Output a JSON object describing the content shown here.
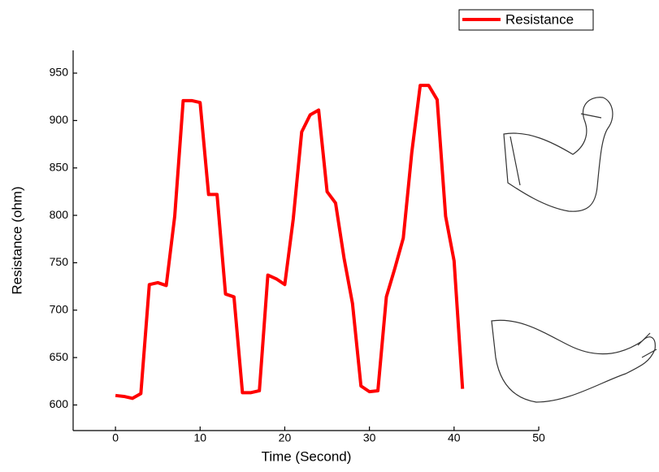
{
  "chart_data": {
    "type": "line",
    "x_label": "Time (Second)",
    "y_label": "Resistance (ohm)",
    "x": [
      0,
      1,
      2,
      3,
      4,
      5,
      6,
      7,
      8,
      9,
      10,
      11,
      12,
      13,
      14,
      15,
      16,
      17,
      18,
      19,
      20,
      21,
      22,
      23,
      24,
      25,
      26,
      27,
      28,
      29,
      30,
      31,
      32,
      33,
      34,
      35,
      36,
      37,
      38,
      39,
      40,
      41
    ],
    "series": [
      {
        "name": "Resistance",
        "color": "#ff0000",
        "values": [
          610,
          609,
          607,
          612,
          727,
          729,
          726,
          799,
          921,
          921,
          919,
          822,
          822,
          717,
          714,
          613,
          613,
          615,
          737,
          733,
          727,
          796,
          888,
          906,
          911,
          825,
          813,
          755,
          707,
          620,
          614,
          615,
          714,
          744,
          776,
          866,
          937,
          937,
          922,
          799,
          752,
          617
        ]
      }
    ],
    "xlim": [
      -5,
      50
    ],
    "ylim": [
      573,
      974
    ],
    "xticks": [
      0,
      10,
      20,
      30,
      40,
      50
    ],
    "yticks": [
      600,
      650,
      700,
      750,
      800,
      850,
      900,
      950
    ],
    "legend": "upper right"
  }
}
